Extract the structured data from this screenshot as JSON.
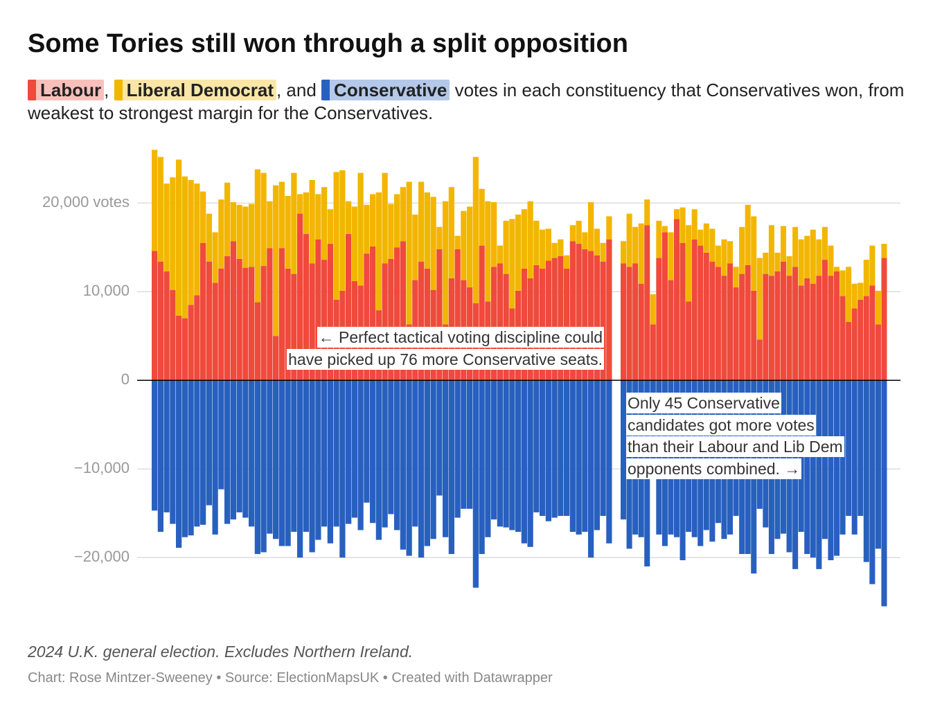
{
  "header": {
    "title": "Some Tories still won through a split opposition",
    "subtitle_parts": [
      ",",
      ", and",
      "votes in each constituency that Conservatives won, from weakest to strongest margin for the Conservatives."
    ]
  },
  "footer": {
    "note": "2024 U.K. general election. Excludes Northern Ireland.",
    "credit": "Chart: Rose Mintzer-Sweeney • Source: ElectionMapsUK • Created with Datawrapper"
  },
  "chart_data": [
    {
      "type": "bar",
      "stacked": true,
      "annotation": [
        "← Perfect tactical voting discipline could",
        "have picked up 76 more Conservative seats."
      ],
      "ylim": [
        -26000,
        26500
      ],
      "yticks": [
        {
          "value": 20000,
          "label": "20,000 votes"
        },
        {
          "value": 10000,
          "label": "10,000"
        },
        0,
        {
          "value": -10000,
          "label": "−10,000"
        },
        {
          "value": -20000,
          "label": "−20,000"
        }
      ],
      "grid": true,
      "series": [
        {
          "name": "Labour",
          "color": "#ef4a3c",
          "values": [
            14600,
            13400,
            12300,
            10200,
            7300,
            7000,
            8500,
            9600,
            15500,
            13400,
            11000,
            12600,
            14000,
            15700,
            13700,
            12700,
            12800,
            8800,
            12900,
            14900,
            5000,
            14900,
            12600,
            12000,
            18800,
            16500,
            13200,
            15900,
            13600,
            15400,
            9100,
            10100,
            16500,
            11200,
            10700,
            14300,
            15100,
            7900,
            13200,
            13700,
            15000,
            15700,
            6300,
            11300,
            13400,
            12600,
            10200,
            14800,
            6300,
            11500,
            14800,
            11300,
            10500,
            8700,
            15200,
            8900,
            12800,
            13200,
            12000,
            8100,
            10100,
            12600,
            11500,
            13000,
            12600,
            13500,
            13800,
            14000,
            12600,
            15700,
            15400,
            14800,
            14600,
            14100,
            13400,
            15900
          ]
        },
        {
          "name": "Liberal Democrat",
          "color": "#f2b600",
          "values": [
            11400,
            11800,
            9900,
            12700,
            17600,
            16000,
            14100,
            12600,
            5800,
            5400,
            5700,
            7800,
            8300,
            4400,
            6100,
            6900,
            7100,
            15000,
            10500,
            5300,
            17000,
            7500,
            8200,
            11400,
            2200,
            4700,
            9400,
            5100,
            8200,
            3900,
            14400,
            13600,
            3700,
            8400,
            12700,
            5500,
            5900,
            13300,
            10200,
            6200,
            6000,
            6100,
            16100,
            7400,
            9000,
            8600,
            10500,
            2500,
            13900,
            10300,
            1500,
            7800,
            9100,
            16500,
            6400,
            11300,
            7300,
            2000,
            6000,
            10100,
            8600,
            6700,
            8700,
            5000,
            4400,
            3600,
            1700,
            1900,
            1500,
            1800,
            2600,
            1900,
            5500,
            3000,
            2100,
            2600
          ]
        },
        {
          "name": "Conservative",
          "color": "#2860bf",
          "values": [
            -14700,
            -17100,
            -14900,
            -16200,
            -18900,
            -17700,
            -17500,
            -16500,
            -16300,
            -14100,
            -17400,
            -12300,
            -16200,
            -15700,
            -14900,
            -15500,
            -16500,
            -19600,
            -19400,
            -17300,
            -17900,
            -18700,
            -18700,
            -17100,
            -20000,
            -17100,
            -19400,
            -18000,
            -16500,
            -18400,
            -16500,
            -20000,
            -16200,
            -15500,
            -16900,
            -13800,
            -16100,
            -18000,
            -16600,
            -15100,
            -16900,
            -19100,
            -19800,
            -16500,
            -20000,
            -18700,
            -17900,
            -13000,
            -17700,
            -19600,
            -15500,
            -14500,
            -14500,
            -23400,
            -19600,
            -17700,
            -15700,
            -16500,
            -16600,
            -16900,
            -17100,
            -18400,
            -18800,
            -14900,
            -15300,
            -15900,
            -15500,
            -15300,
            -15300,
            -17100,
            -17400,
            -17100,
            -20000,
            -16900,
            -15300,
            -18400
          ]
        }
      ]
    },
    {
      "type": "bar",
      "stacked": true,
      "annotation": [
        "Only 45 Conservative",
        "candidates got more votes",
        "than their Labour and Lib Dem",
        "opponents combined. →"
      ],
      "ylim": [
        -26000,
        26500
      ],
      "series": [
        {
          "name": "Labour",
          "color": "#ef4a3c",
          "values": [
            13200,
            12800,
            13200,
            10900,
            17500,
            6300,
            13800,
            16700,
            11300,
            18200,
            15500,
            8900,
            15900,
            15200,
            14400,
            13400,
            12800,
            11800,
            13200,
            10500,
            12000,
            13000,
            10100,
            4600,
            12000,
            11800,
            12300,
            13400,
            11800,
            12800,
            10700,
            11500,
            10900,
            11800,
            13600,
            11800,
            12300,
            9500,
            6600,
            8100,
            9100,
            9500,
            10700,
            6300,
            13800
          ]
        },
        {
          "name": "Liberal Democrat",
          "color": "#f2b600",
          "values": [
            2500,
            6000,
            4100,
            6800,
            2900,
            3400,
            4200,
            700,
            5400,
            1100,
            4000,
            8600,
            3400,
            1800,
            3300,
            3700,
            2400,
            4100,
            2500,
            2300,
            5300,
            6800,
            8400,
            9200,
            2400,
            5700,
            2100,
            4000,
            2200,
            4500,
            5200,
            4800,
            6100,
            4100,
            3700,
            3400,
            500,
            2900,
            6200,
            2800,
            1900,
            4100,
            4500,
            3800,
            1600
          ]
        },
        {
          "name": "Conservative",
          "color": "#2860bf",
          "values": [
            -15700,
            -19000,
            -17400,
            -17700,
            -21000,
            -11000,
            -17400,
            -18700,
            -17400,
            -17700,
            -20300,
            -17100,
            -17700,
            -18700,
            -16900,
            -18200,
            -16100,
            -17900,
            -17400,
            -15300,
            -19600,
            -19600,
            -21800,
            -14500,
            -16600,
            -19600,
            -17900,
            -17300,
            -19400,
            -21300,
            -17100,
            -19600,
            -20000,
            -21300,
            -17900,
            -20300,
            -19800,
            -17400,
            -15300,
            -17400,
            -15300,
            -20500,
            -23000,
            -19000,
            -25500
          ]
        }
      ]
    }
  ]
}
